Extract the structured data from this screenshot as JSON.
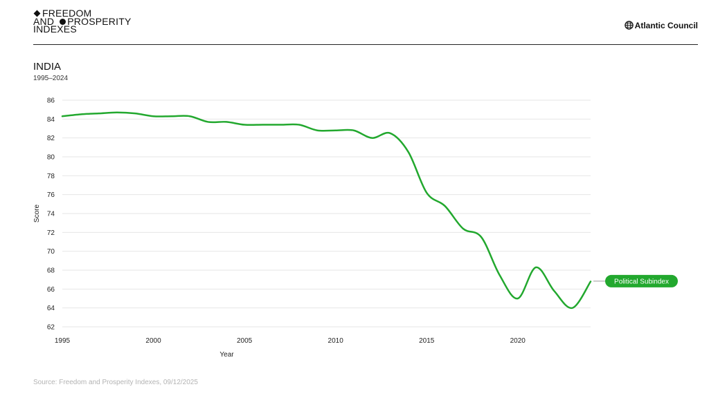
{
  "header": {
    "brand_line1": "FREEDOM",
    "brand_line2a": "AND ",
    "brand_line2b": "PROSPERITY",
    "brand_line3": "INDEXES",
    "org": "Atlantic Council"
  },
  "footer": {
    "source": "Source: Freedom and Prosperity Indexes, 09/12/2025"
  },
  "colors": {
    "series": "#22a82e",
    "grid": "#e6e6e6"
  },
  "chart_data": {
    "type": "line",
    "title": "INDIA",
    "subtitle": "1995–2024",
    "xlabel": "Year",
    "ylabel": "Score",
    "xlim": [
      1995,
      2024
    ],
    "ylim": [
      62,
      86
    ],
    "xticks": [
      1995,
      2000,
      2005,
      2010,
      2015,
      2020
    ],
    "yticks": [
      62,
      64,
      66,
      68,
      70,
      72,
      74,
      76,
      78,
      80,
      82,
      84,
      86
    ],
    "grid": true,
    "series": [
      {
        "name": "Political Subindex",
        "x": [
          1995,
          1996,
          1997,
          1998,
          1999,
          2000,
          2001,
          2002,
          2003,
          2004,
          2005,
          2006,
          2007,
          2008,
          2009,
          2010,
          2011,
          2012,
          2013,
          2014,
          2015,
          2016,
          2017,
          2018,
          2019,
          2020,
          2021,
          2022,
          2023,
          2024
        ],
        "y": [
          84.3,
          84.5,
          84.6,
          84.7,
          84.6,
          84.3,
          84.3,
          84.3,
          83.7,
          83.7,
          83.4,
          83.4,
          83.4,
          83.4,
          82.8,
          82.8,
          82.8,
          82.0,
          82.5,
          80.5,
          76.2,
          74.8,
          72.4,
          71.5,
          67.5,
          65.0,
          68.3,
          65.8,
          64.0,
          66.8
        ]
      }
    ]
  }
}
